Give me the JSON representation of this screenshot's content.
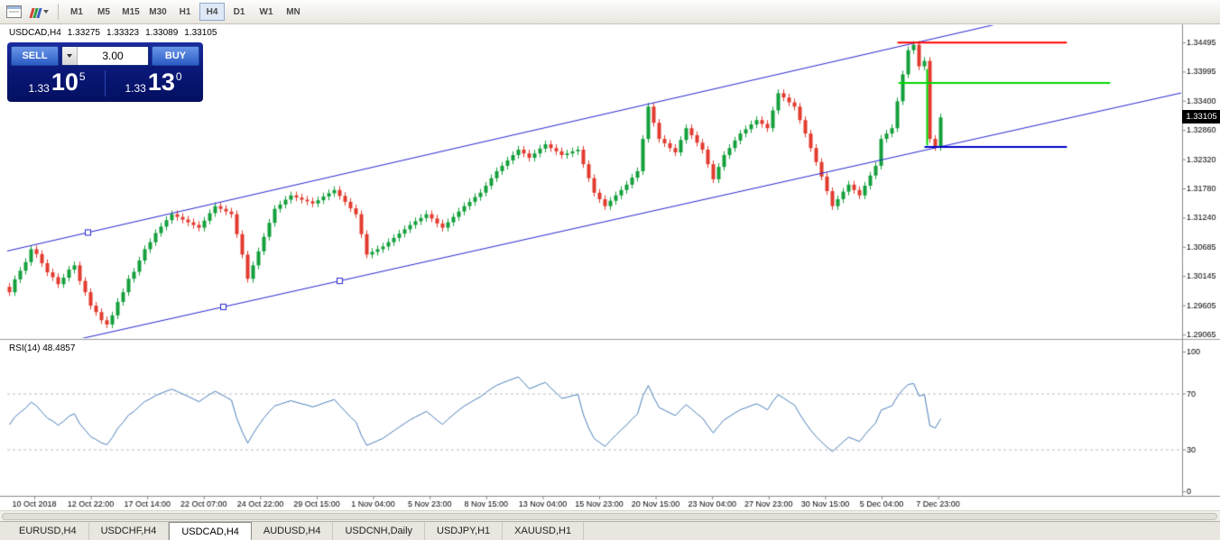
{
  "toolbar": {
    "timeframes": [
      "M1",
      "M5",
      "M15",
      "M30",
      "H1",
      "H4",
      "D1",
      "W1",
      "MN"
    ],
    "active_timeframe": "H4"
  },
  "symbol_overlay": {
    "symbol": "USDCAD,H4",
    "open": "1.33275",
    "high": "1.33323",
    "low": "1.33089",
    "close": "1.33105"
  },
  "trade_panel": {
    "sell_label": "SELL",
    "buy_label": "BUY",
    "volume": "3.00",
    "bid": {
      "small": "1.33",
      "big": "10",
      "sup": "5"
    },
    "ask": {
      "small": "1.33",
      "big": "13",
      "sup": "0"
    }
  },
  "price_badge": "1.33105",
  "rsi_panel": {
    "label": "RSI(14) 48.4857"
  },
  "axes": {
    "price_labels": [
      "1.34495",
      "1.33995",
      "1.33400",
      "1.32860",
      "1.32320",
      "1.31780",
      "1.31240",
      "1.30685",
      "1.30145",
      "1.29605",
      "1.29065"
    ],
    "rsi_labels": [
      "100",
      "70",
      "30",
      "0"
    ],
    "time_labels": [
      "10 Oct 2018",
      "12 Oct 22:00",
      "17 Oct 14:00",
      "22 Oct 07:00",
      "24 Oct 22:00",
      "29 Oct 15:00",
      "1 Nov 04:00",
      "5 Nov 23:00",
      "8 Nov 15:00",
      "13 Nov 04:00",
      "15 Nov 23:00",
      "20 Nov 15:00",
      "23 Nov 04:00",
      "27 Nov 23:00",
      "30 Nov 15:00",
      "5 Dec 04:00",
      "7 Dec 23:00"
    ]
  },
  "tabs": [
    {
      "label": "EURUSD,H4",
      "active": false
    },
    {
      "label": "USDCHF,H4",
      "active": false
    },
    {
      "label": "USDCAD,H4",
      "active": true
    },
    {
      "label": "AUDUSD,H4",
      "active": false
    },
    {
      "label": "USDCNH,Daily",
      "active": false
    },
    {
      "label": "USDJPY,H1",
      "active": false
    },
    {
      "label": "XAUUSD,H1",
      "active": false
    }
  ],
  "colors": {
    "up": "#14a03c",
    "down": "#e23b2e",
    "channel": "#2626d2",
    "red": "#ff0000",
    "green": "#00d800",
    "blue": "#0000c8",
    "rsi": "#4a7ebb",
    "rsi_level": "#bdbdbd",
    "badge_bg": "#000000",
    "badge_text": "#ffffff"
  },
  "chart_data": {
    "type": "candlestick",
    "title": "USDCAD,H4",
    "current_ohlc": {
      "open": 1.33275,
      "high": 1.33323,
      "low": 1.33089,
      "close": 1.33105
    },
    "price_axis": {
      "top": 1.34495,
      "bottom": 1.29065
    },
    "first_open": 1.2995,
    "wick": 0.0007,
    "closes": [
      1.2985,
      1.3009,
      1.3025,
      1.3041,
      1.3065,
      1.3056,
      1.3039,
      1.3022,
      1.3013,
      1.3,
      1.3012,
      1.3027,
      1.3035,
      1.3006,
      1.2985,
      1.296,
      1.2948,
      1.2933,
      1.2925,
      1.2942,
      1.2967,
      1.2985,
      1.301,
      1.3023,
      1.3044,
      1.3065,
      1.3078,
      1.3095,
      1.3107,
      1.3119,
      1.313,
      1.3125,
      1.312,
      1.3115,
      1.311,
      1.3105,
      1.3118,
      1.3132,
      1.3145,
      1.314,
      1.3135,
      1.313,
      1.3093,
      1.3055,
      1.301,
      1.3035,
      1.3061,
      1.3088,
      1.3114,
      1.314,
      1.3148,
      1.3157,
      1.3165,
      1.3161,
      1.3157,
      1.3154,
      1.315,
      1.3156,
      1.3163,
      1.3169,
      1.3175,
      1.3164,
      1.3153,
      1.3141,
      1.313,
      1.3093,
      1.3055,
      1.306,
      1.3065,
      1.307,
      1.3078,
      1.3086,
      1.3094,
      1.3102,
      1.311,
      1.3117,
      1.3123,
      1.313,
      1.3122,
      1.3113,
      1.3105,
      1.3115,
      1.3125,
      1.3135,
      1.3145,
      1.3153,
      1.3162,
      1.317,
      1.3183,
      1.3197,
      1.321,
      1.322,
      1.323,
      1.324,
      1.325,
      1.3243,
      1.3235,
      1.3243,
      1.3252,
      1.326,
      1.3253,
      1.3247,
      1.324,
      1.3243,
      1.3247,
      1.325,
      1.3223,
      1.3197,
      1.317,
      1.3158,
      1.3145,
      1.3155,
      1.3165,
      1.3175,
      1.3185,
      1.3198,
      1.321,
      1.327,
      1.333,
      1.33,
      1.327,
      1.3262,
      1.3253,
      1.3245,
      1.3268,
      1.329,
      1.3277,
      1.3263,
      1.325,
      1.3223,
      1.3195,
      1.3218,
      1.324,
      1.3253,
      1.3267,
      1.328,
      1.3288,
      1.3297,
      1.3305,
      1.3298,
      1.329,
      1.3323,
      1.3355,
      1.3347,
      1.3338,
      1.333,
      1.3305,
      1.328,
      1.3253,
      1.3227,
      1.32,
      1.3173,
      1.3145,
      1.3158,
      1.3172,
      1.3185,
      1.3175,
      1.3165,
      1.3183,
      1.3202,
      1.322,
      1.327,
      1.328,
      1.329,
      1.334,
      1.339,
      1.3435,
      1.3445,
      1.3405,
      1.3415,
      1.327,
      1.3255,
      1.331
    ],
    "channel": {
      "upper": {
        "a": [
          14.5,
          1.3096
        ],
        "b": [
          165.3,
          1.3444
        ]
      },
      "lower": {
        "a": [
          18.7,
          1.2911
        ],
        "b": [
          169.5,
          1.325
        ]
      },
      "handles": [
        {
          "idx": 14.5,
          "line": "upper"
        },
        {
          "idx": 39.5,
          "line": "lower"
        },
        {
          "idx": 61,
          "line": "lower"
        }
      ]
    },
    "hlines": [
      {
        "price": 1.3449,
        "i1": 164.0,
        "i2": 195.3,
        "color": "red"
      },
      {
        "price": 1.3374,
        "i1": 164.2,
        "i2": 203.3,
        "color": "green"
      },
      {
        "price": 1.3255,
        "i1": 169.0,
        "i2": 195.3,
        "color": "blue"
      }
    ],
    "vseg": {
      "idx": 169.5,
      "p1": 1.34,
      "p2": 1.3258,
      "color": "green"
    },
    "rsi": {
      "period": 14,
      "seed": 0.0008,
      "current": 48.4857,
      "levels": [
        70,
        30
      ],
      "range": [
        0,
        100
      ]
    }
  }
}
